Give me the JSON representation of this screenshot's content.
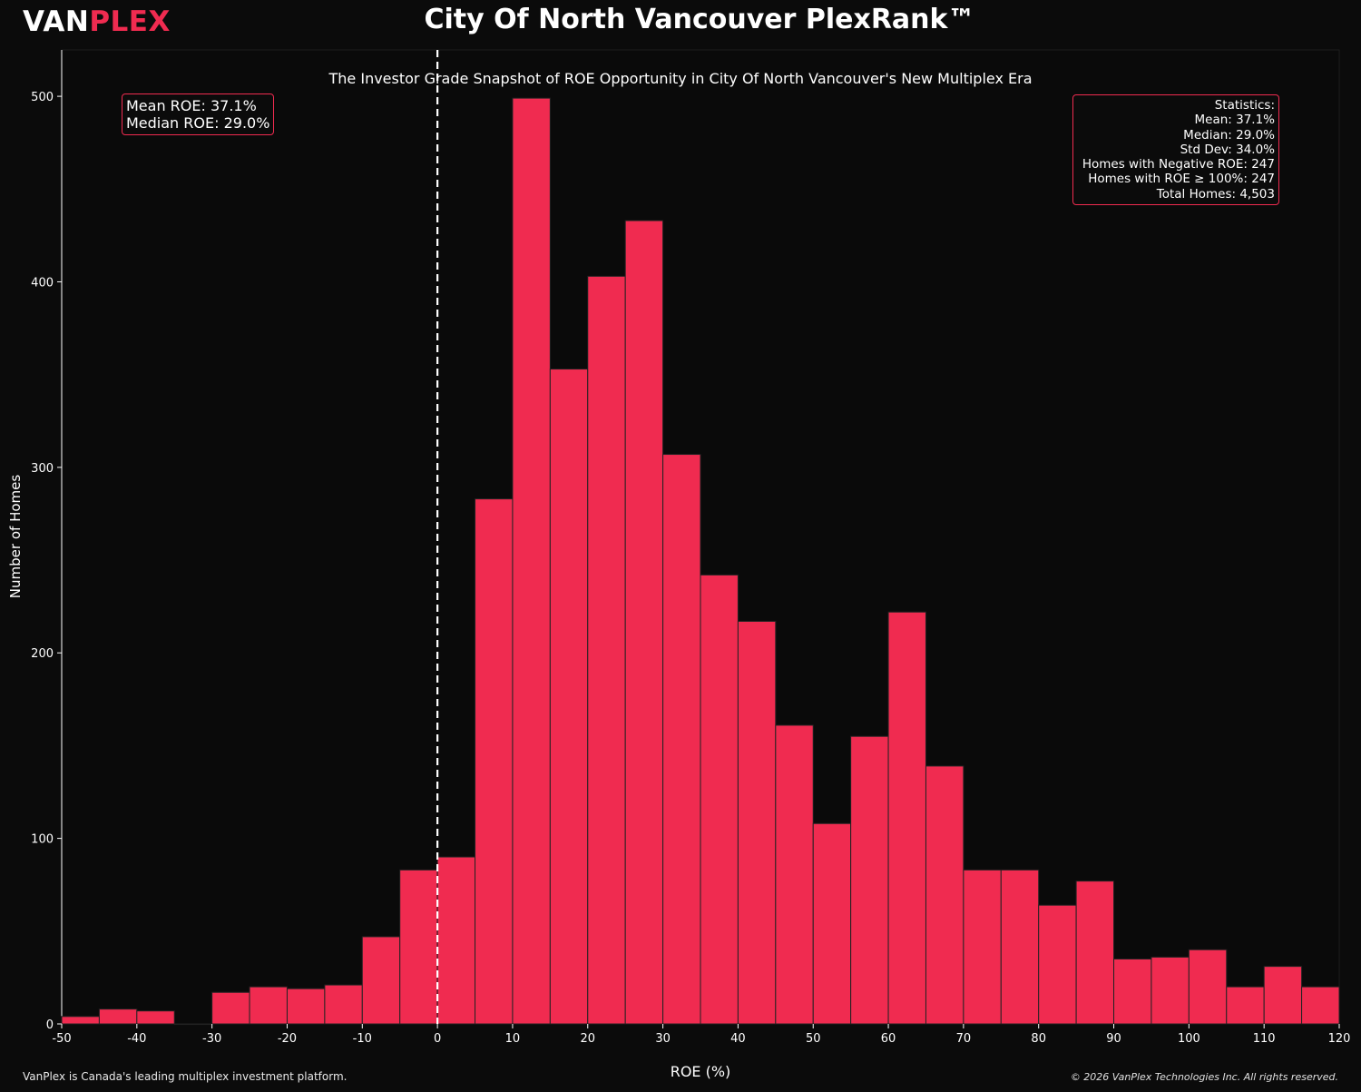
{
  "brand": {
    "part1": "VAN",
    "part2": "PLEX"
  },
  "title": "City Of North Vancouver PlexRank™",
  "colors": {
    "background": "#0b0b0b",
    "bar": "#f02b50",
    "accent": "#f02b50",
    "text": "#ffffff"
  },
  "chart_data": {
    "type": "bar",
    "title": "The Investor Grade Snapshot of ROE Opportunity in City Of North Vancouver's New Multiplex Era",
    "xlabel": "ROE (%)",
    "ylabel": "Number of Homes",
    "xlim": [
      -50,
      120
    ],
    "ylim": [
      0,
      525
    ],
    "x_ticks": [
      -50,
      -40,
      -30,
      -20,
      -10,
      0,
      10,
      20,
      30,
      40,
      50,
      60,
      70,
      80,
      90,
      100,
      110,
      120
    ],
    "y_ticks": [
      0,
      100,
      200,
      300,
      400,
      500
    ],
    "bin_width": 5,
    "bin_starts": [
      -50,
      -45,
      -40,
      -35,
      -30,
      -25,
      -20,
      -15,
      -10,
      -5,
      0,
      5,
      10,
      15,
      20,
      25,
      30,
      35,
      40,
      45,
      50,
      55,
      60,
      65,
      70,
      75,
      80,
      85,
      90,
      95,
      100,
      105,
      110,
      115
    ],
    "values": [
      4,
      8,
      7,
      0,
      17,
      20,
      19,
      21,
      47,
      83,
      90,
      283,
      499,
      353,
      403,
      433,
      307,
      242,
      217,
      161,
      108,
      155,
      222,
      139,
      83,
      83,
      64,
      77,
      35,
      36,
      40,
      20,
      31,
      20
    ],
    "reference_line_x": 0,
    "grid": false
  },
  "mean_box": {
    "line1": "Mean ROE: 37.1%",
    "line2": "Median ROE: 29.0%"
  },
  "stats": [
    "Statistics:",
    "Mean: 37.1%",
    "Median: 29.0%",
    "Std Dev: 34.0%",
    "Homes with Negative ROE: 247",
    "Homes with ROE ≥ 100%: 247",
    "Total Homes: 4,503"
  ],
  "footer": {
    "left": "VanPlex is Canada's leading multiplex investment platform.",
    "right": "© 2026 VanPlex Technologies Inc. All rights reserved."
  }
}
